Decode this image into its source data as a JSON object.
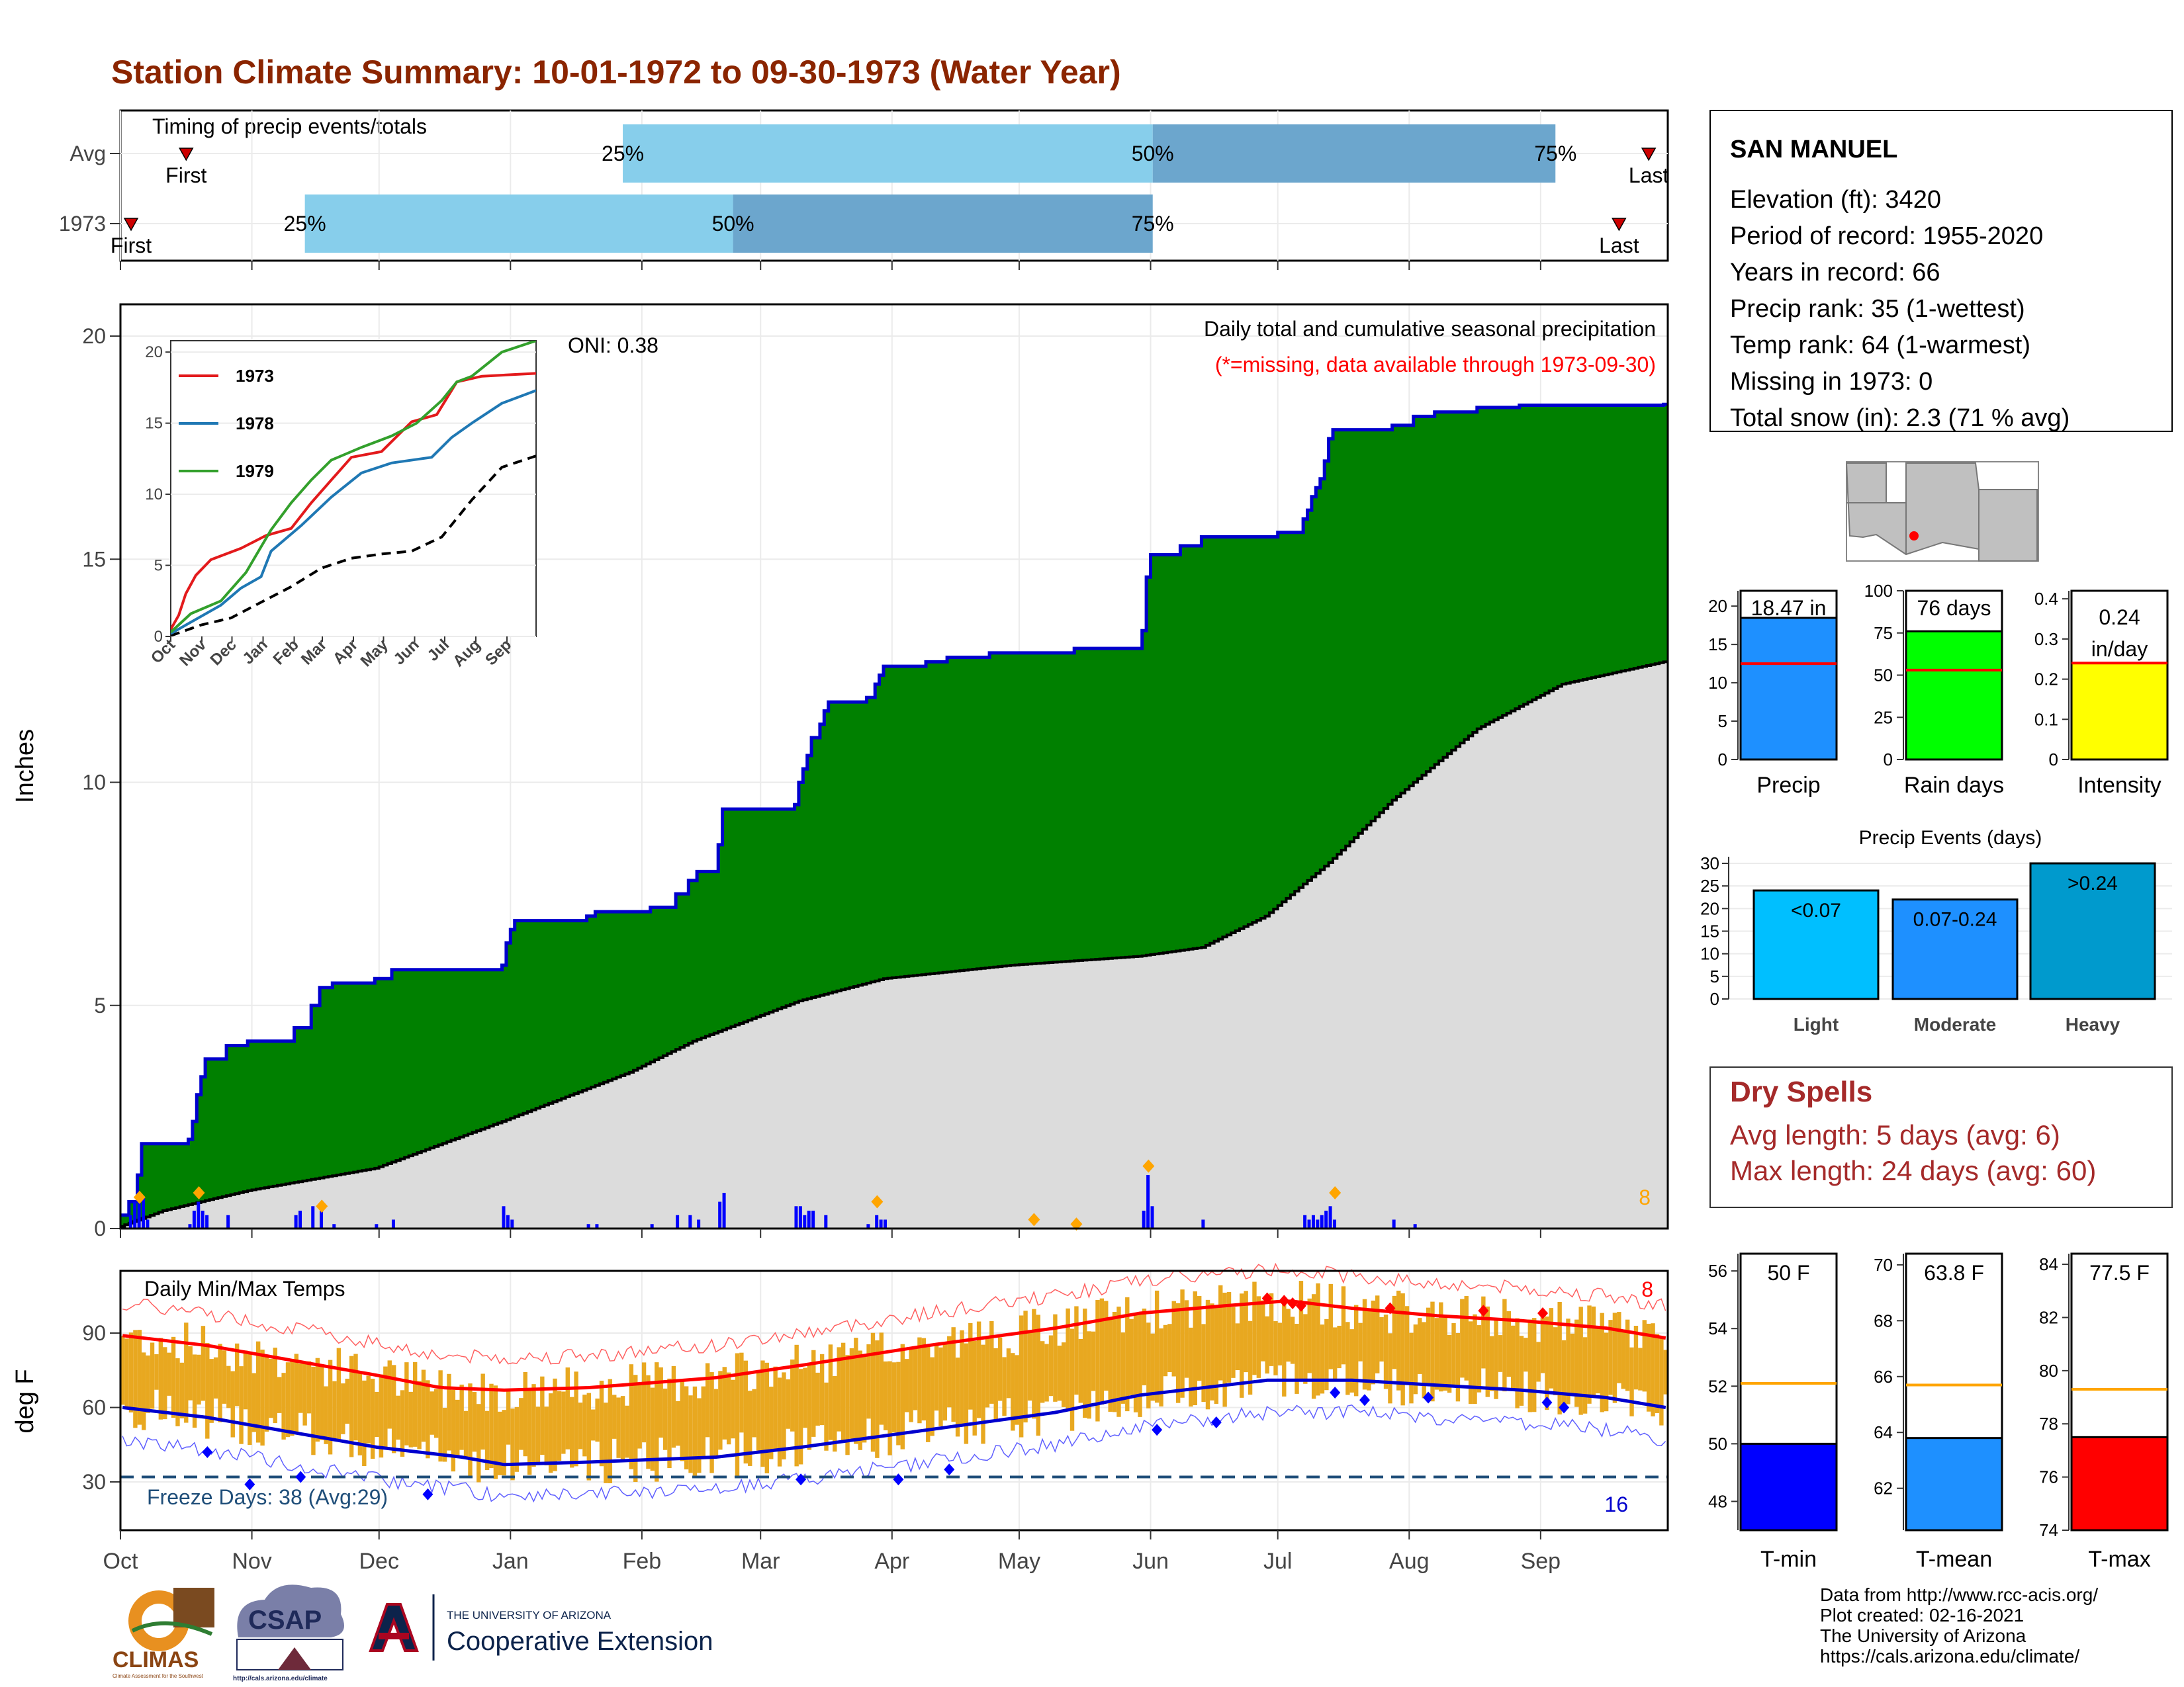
{
  "title": "Station Climate Summary: 10-01-1972 to 09-30-1973 (Water Year)",
  "colors": {
    "title": "#8B2500",
    "cum_fill": "#008000",
    "cum_line": "#0000CD",
    "avg_fill": "#DCDCDC",
    "daily_bar": "#0000FF",
    "marker": "#FFA500",
    "timing_light": "#87CEEB",
    "timing_dark": "#6CA6CD",
    "temp_band": "#E8A820",
    "tmax_line": "#FF0000",
    "tmin_line": "#0000CD",
    "freeze_line": "#1F4E79",
    "dry_spell": "#A52A2A",
    "precip_bar": "#1E90FF",
    "raindays_bar": "#00FF00",
    "intensity_bar": "#FFFF00",
    "light_bar": "#00BFFF",
    "moderate_bar": "#1E90FF",
    "heavy_bar": "#009ACD",
    "avg_marker": "#FFA500"
  },
  "months": [
    "Oct",
    "Nov",
    "Dec",
    "Jan",
    "Feb",
    "Mar",
    "Apr",
    "May",
    "Jun",
    "Jul",
    "Aug",
    "Sep"
  ],
  "timing": {
    "title": "Timing of precip events/totals",
    "rows": [
      {
        "label": "Avg",
        "first_label": "First",
        "last_label": "Last",
        "first": 15,
        "last": 360,
        "p25": 118,
        "p50": 243,
        "p75": 338
      },
      {
        "label": "1973",
        "first_label": "First",
        "last_label": "Last",
        "first": 2,
        "last": 353,
        "p25": 43,
        "p50": 144,
        "p75": 243
      }
    ],
    "pct_labels": [
      "25%",
      "50%",
      "75%"
    ]
  },
  "main": {
    "ylabel": "Inches",
    "yticks": [
      0,
      5,
      10,
      15,
      20
    ],
    "ymax": 20,
    "caption": "Daily total and cumulative seasonal precipitation",
    "missing_note": "(*=missing, data available through 1973-09-30)",
    "oni": "ONI: 0.38",
    "corner_count": "8",
    "cum_steps": [
      [
        0,
        0.3
      ],
      [
        2,
        0.6
      ],
      [
        4,
        1.2
      ],
      [
        5,
        1.9
      ],
      [
        16,
        2.0
      ],
      [
        17,
        2.4
      ],
      [
        18,
        3.0
      ],
      [
        19,
        3.4
      ],
      [
        20,
        3.8
      ],
      [
        25,
        4.1
      ],
      [
        30,
        4.2
      ],
      [
        40,
        4.2
      ],
      [
        41,
        4.5
      ],
      [
        45,
        5.0
      ],
      [
        47,
        5.4
      ],
      [
        50,
        5.5
      ],
      [
        60,
        5.6
      ],
      [
        64,
        5.8
      ],
      [
        90,
        5.9
      ],
      [
        91,
        6.4
      ],
      [
        92,
        6.7
      ],
      [
        93,
        6.9
      ],
      [
        110,
        7.0
      ],
      [
        112,
        7.1
      ],
      [
        125,
        7.2
      ],
      [
        131,
        7.5
      ],
      [
        134,
        7.8
      ],
      [
        136,
        8.0
      ],
      [
        141,
        8.6
      ],
      [
        142,
        9.4
      ],
      [
        159,
        9.5
      ],
      [
        160,
        10.0
      ],
      [
        161,
        10.3
      ],
      [
        162,
        10.6
      ],
      [
        163,
        11.0
      ],
      [
        165,
        11.3
      ],
      [
        166,
        11.6
      ],
      [
        167,
        11.8
      ],
      [
        176,
        11.9
      ],
      [
        178,
        12.2
      ],
      [
        179,
        12.4
      ],
      [
        180,
        12.6
      ],
      [
        190,
        12.7
      ],
      [
        195,
        12.8
      ],
      [
        205,
        12.9
      ],
      [
        210,
        12.9
      ],
      [
        225,
        13.0
      ],
      [
        240,
        13.0
      ],
      [
        241,
        13.4
      ],
      [
        242,
        14.6
      ],
      [
        243,
        15.1
      ],
      [
        250,
        15.3
      ],
      [
        255,
        15.5
      ],
      [
        270,
        15.5
      ],
      [
        273,
        15.6
      ],
      [
        279,
        15.9
      ],
      [
        280,
        16.1
      ],
      [
        281,
        16.4
      ],
      [
        282,
        16.6
      ],
      [
        283,
        16.8
      ],
      [
        284,
        17.2
      ],
      [
        285,
        17.7
      ],
      [
        286,
        17.9
      ],
      [
        300,
        18.0
      ],
      [
        305,
        18.2
      ],
      [
        310,
        18.3
      ],
      [
        320,
        18.4
      ],
      [
        330,
        18.45
      ],
      [
        364,
        18.47
      ]
    ],
    "avg_cum": [
      [
        0,
        0.05
      ],
      [
        10,
        0.4
      ],
      [
        30,
        0.85
      ],
      [
        60,
        1.35
      ],
      [
        90,
        2.4
      ],
      [
        120,
        3.5
      ],
      [
        135,
        4.2
      ],
      [
        160,
        5.1
      ],
      [
        180,
        5.6
      ],
      [
        210,
        5.9
      ],
      [
        240,
        6.1
      ],
      [
        255,
        6.3
      ],
      [
        270,
        7.0
      ],
      [
        285,
        8.2
      ],
      [
        300,
        9.6
      ],
      [
        320,
        11.2
      ],
      [
        340,
        12.2
      ],
      [
        364,
        12.7
      ]
    ],
    "daily": [
      [
        2,
        0.3
      ],
      [
        3,
        0.6
      ],
      [
        4,
        0.6
      ],
      [
        5,
        0.7
      ],
      [
        6,
        0.2
      ],
      [
        16,
        0.1
      ],
      [
        17,
        0.4
      ],
      [
        18,
        0.6
      ],
      [
        19,
        0.4
      ],
      [
        20,
        0.3
      ],
      [
        25,
        0.3
      ],
      [
        41,
        0.3
      ],
      [
        42,
        0.4
      ],
      [
        45,
        0.5
      ],
      [
        47,
        0.4
      ],
      [
        50,
        0.1
      ],
      [
        60,
        0.1
      ],
      [
        64,
        0.2
      ],
      [
        90,
        0.5
      ],
      [
        91,
        0.3
      ],
      [
        92,
        0.2
      ],
      [
        110,
        0.1
      ],
      [
        112,
        0.1
      ],
      [
        125,
        0.1
      ],
      [
        131,
        0.3
      ],
      [
        134,
        0.3
      ],
      [
        136,
        0.2
      ],
      [
        141,
        0.6
      ],
      [
        142,
        0.8
      ],
      [
        159,
        0.5
      ],
      [
        160,
        0.5
      ],
      [
        161,
        0.3
      ],
      [
        162,
        0.4
      ],
      [
        163,
        0.4
      ],
      [
        166,
        0.3
      ],
      [
        176,
        0.1
      ],
      [
        178,
        0.3
      ],
      [
        179,
        0.2
      ],
      [
        180,
        0.2
      ],
      [
        241,
        0.4
      ],
      [
        242,
        1.2
      ],
      [
        243,
        0.5
      ],
      [
        255,
        0.2
      ],
      [
        279,
        0.3
      ],
      [
        280,
        0.2
      ],
      [
        281,
        0.3
      ],
      [
        282,
        0.2
      ],
      [
        283,
        0.3
      ],
      [
        284,
        0.4
      ],
      [
        285,
        0.5
      ],
      [
        286,
        0.2
      ],
      [
        300,
        0.2
      ],
      [
        305,
        0.1
      ]
    ],
    "markers": [
      [
        4,
        0.7
      ],
      [
        18,
        0.8
      ],
      [
        47,
        0.5
      ],
      [
        178,
        0.6
      ],
      [
        215,
        0.2
      ],
      [
        225,
        0.1
      ],
      [
        242,
        1.4
      ],
      [
        286,
        0.8
      ]
    ]
  },
  "inset": {
    "xticks": [
      "Oct",
      "Nov",
      "Dec",
      "Jan",
      "Feb",
      "Mar",
      "Apr",
      "May",
      "Jun",
      "Jul",
      "Aug",
      "Sep"
    ],
    "yticks": [
      0,
      5,
      10,
      15,
      20
    ],
    "series": [
      {
        "name": "1973",
        "color": "#E31A1C",
        "points": [
          [
            0,
            0.5
          ],
          [
            8,
            1.5
          ],
          [
            15,
            3.0
          ],
          [
            25,
            4.3
          ],
          [
            40,
            5.4
          ],
          [
            70,
            6.2
          ],
          [
            95,
            7.1
          ],
          [
            120,
            7.6
          ],
          [
            140,
            9.4
          ],
          [
            160,
            11.0
          ],
          [
            180,
            12.6
          ],
          [
            210,
            13.0
          ],
          [
            240,
            15.1
          ],
          [
            265,
            15.6
          ],
          [
            285,
            17.9
          ],
          [
            310,
            18.3
          ],
          [
            364,
            18.5
          ]
        ]
      },
      {
        "name": "1978",
        "color": "#1F78B4",
        "points": [
          [
            0,
            0.2
          ],
          [
            20,
            1.0
          ],
          [
            50,
            2.2
          ],
          [
            70,
            3.4
          ],
          [
            90,
            4.2
          ],
          [
            100,
            6.0
          ],
          [
            130,
            7.8
          ],
          [
            160,
            9.8
          ],
          [
            190,
            11.5
          ],
          [
            220,
            12.2
          ],
          [
            260,
            12.6
          ],
          [
            280,
            14.0
          ],
          [
            300,
            15.0
          ],
          [
            330,
            16.4
          ],
          [
            364,
            17.3
          ]
        ]
      },
      {
        "name": "1979",
        "color": "#33A02C",
        "points": [
          [
            0,
            0.3
          ],
          [
            20,
            1.6
          ],
          [
            50,
            2.5
          ],
          [
            75,
            4.5
          ],
          [
            100,
            7.5
          ],
          [
            120,
            9.4
          ],
          [
            140,
            11.0
          ],
          [
            160,
            12.4
          ],
          [
            190,
            13.3
          ],
          [
            220,
            14.1
          ],
          [
            245,
            15.0
          ],
          [
            270,
            16.6
          ],
          [
            285,
            17.9
          ],
          [
            300,
            18.3
          ],
          [
            330,
            20.0
          ],
          [
            364,
            20.8
          ]
        ]
      }
    ],
    "avg_points": [
      [
        0,
        0.05
      ],
      [
        30,
        0.8
      ],
      [
        60,
        1.3
      ],
      [
        90,
        2.4
      ],
      [
        120,
        3.5
      ],
      [
        150,
        4.8
      ],
      [
        180,
        5.5
      ],
      [
        210,
        5.8
      ],
      [
        240,
        6.0
      ],
      [
        270,
        7.0
      ],
      [
        300,
        9.6
      ],
      [
        330,
        11.9
      ],
      [
        364,
        12.7
      ]
    ]
  },
  "temps": {
    "title": "Daily Min/Max Temps",
    "ylabel": "deg F",
    "yticks": [
      30,
      60,
      90
    ],
    "freeze_label": "Freeze Days: 38 (Avg:29)",
    "max_count": "8",
    "min_count": "16",
    "avg_tmax": [
      [
        0,
        89
      ],
      [
        20,
        85
      ],
      [
        40,
        79
      ],
      [
        60,
        73
      ],
      [
        75,
        68
      ],
      [
        90,
        67
      ],
      [
        110,
        68
      ],
      [
        140,
        72
      ],
      [
        160,
        77
      ],
      [
        190,
        85
      ],
      [
        220,
        92
      ],
      [
        240,
        98
      ],
      [
        260,
        101
      ],
      [
        275,
        103
      ],
      [
        290,
        100
      ],
      [
        310,
        97
      ],
      [
        330,
        95
      ],
      [
        350,
        92
      ],
      [
        364,
        88
      ]
    ],
    "avg_tmin": [
      [
        0,
        60
      ],
      [
        20,
        56
      ],
      [
        40,
        50
      ],
      [
        60,
        44
      ],
      [
        80,
        40
      ],
      [
        90,
        37
      ],
      [
        110,
        38
      ],
      [
        140,
        40
      ],
      [
        160,
        44
      ],
      [
        190,
        51
      ],
      [
        220,
        58
      ],
      [
        240,
        65
      ],
      [
        260,
        69
      ],
      [
        270,
        71
      ],
      [
        290,
        71
      ],
      [
        310,
        69
      ],
      [
        330,
        67
      ],
      [
        350,
        64
      ],
      [
        364,
        60
      ]
    ],
    "hot_markers": [
      [
        270,
        104
      ],
      [
        274,
        103
      ],
      [
        276,
        102
      ],
      [
        278,
        101
      ],
      [
        299,
        100
      ],
      [
        321,
        99
      ],
      [
        335,
        98
      ]
    ],
    "cold_markers": [
      [
        20,
        42
      ],
      [
        30,
        29
      ],
      [
        42,
        32
      ],
      [
        72,
        25
      ],
      [
        160,
        31
      ],
      [
        183,
        31
      ],
      [
        195,
        35
      ],
      [
        244,
        51
      ],
      [
        258,
        54
      ],
      [
        286,
        66
      ],
      [
        293,
        63
      ],
      [
        308,
        64
      ],
      [
        336,
        62
      ],
      [
        340,
        60
      ]
    ]
  },
  "station": {
    "name": "SAN MANUEL",
    "lines": [
      "Elevation (ft): 3420",
      "Period of record: 1955-2020",
      "Years in record: 66",
      "Precip rank: 35 (1-wettest)",
      "Temp rank: 64 (1-warmest)",
      "Missing in 1973: 0",
      "Total snow (in): 2.3 (71 % avg)"
    ]
  },
  "summary_bars": [
    {
      "label": "Precip",
      "value_text": "18.47 in",
      "value": 18.47,
      "avg": 12.5,
      "ymax": 22,
      "ticks": [
        0,
        5,
        10,
        15,
        20
      ],
      "color": "#1E90FF"
    },
    {
      "label": "Rain days",
      "value_text": "76 days",
      "value": 76,
      "avg": 53,
      "ymax": 100,
      "ticks": [
        0,
        25,
        50,
        75,
        100
      ],
      "color": "#00FF00"
    },
    {
      "label": "Intensity",
      "value_text": "0.24 in/day",
      "value": 0.24,
      "avg": 0.24,
      "ymax": 0.42,
      "ticks": [
        0.0,
        0.1,
        0.2,
        0.3,
        0.4
      ],
      "color": "#FFFF00"
    }
  ],
  "precip_events": {
    "title": "Precip Events (days)",
    "yticks": [
      0,
      5,
      10,
      15,
      20,
      25,
      30
    ],
    "ymax": 30,
    "bars": [
      {
        "label": "Light",
        "value_label": "<0.07",
        "value": 24,
        "color": "#00BFFF"
      },
      {
        "label": "Moderate",
        "value_label": "0.07-0.24",
        "value": 22,
        "color": "#1E90FF"
      },
      {
        "label": "Heavy",
        "value_label": ">0.24",
        "value": 30,
        "color": "#009ACD"
      }
    ]
  },
  "dry_spells": {
    "title": "Dry Spells",
    "avg_length": "Avg length: 5 days (avg: 6)",
    "max_length": "Max length: 24 days (avg: 60)"
  },
  "temp_bars": [
    {
      "label": "T-min",
      "value_text": "50 F",
      "value": 50,
      "avg": 52.1,
      "ymin": 47,
      "ymax": 56.6,
      "ticks": [
        48,
        50,
        52,
        54,
        56
      ],
      "color": "#0000FF"
    },
    {
      "label": "T-mean",
      "value_text": "63.8 F",
      "value": 63.8,
      "avg": 65.7,
      "ymin": 60.5,
      "ymax": 70.4,
      "ticks": [
        62,
        64,
        66,
        68,
        70
      ],
      "color": "#1E90FF"
    },
    {
      "label": "T-max",
      "value_text": "77.5 F",
      "value": 77.5,
      "avg": 79.3,
      "ymin": 74,
      "ymax": 84.4,
      "ticks": [
        74,
        76,
        78,
        80,
        82,
        84
      ],
      "color": "#FF0000"
    }
  ],
  "footer": {
    "lines": [
      "Data from http://www.rcc-acis.org/",
      "Plot created: 02-16-2021",
      "The University of Arizona",
      "https://cals.arizona.edu/climate/"
    ],
    "logos": {
      "climas": "CLIMAS",
      "climas_sub": "Climate Assessment for the Southwest",
      "csap": "CSAP",
      "csap_url": "http://cals.arizona.edu/climate",
      "ua_header": "THE UNIVERSITY OF ARIZONA",
      "ua_name": "Cooperative Extension"
    }
  }
}
